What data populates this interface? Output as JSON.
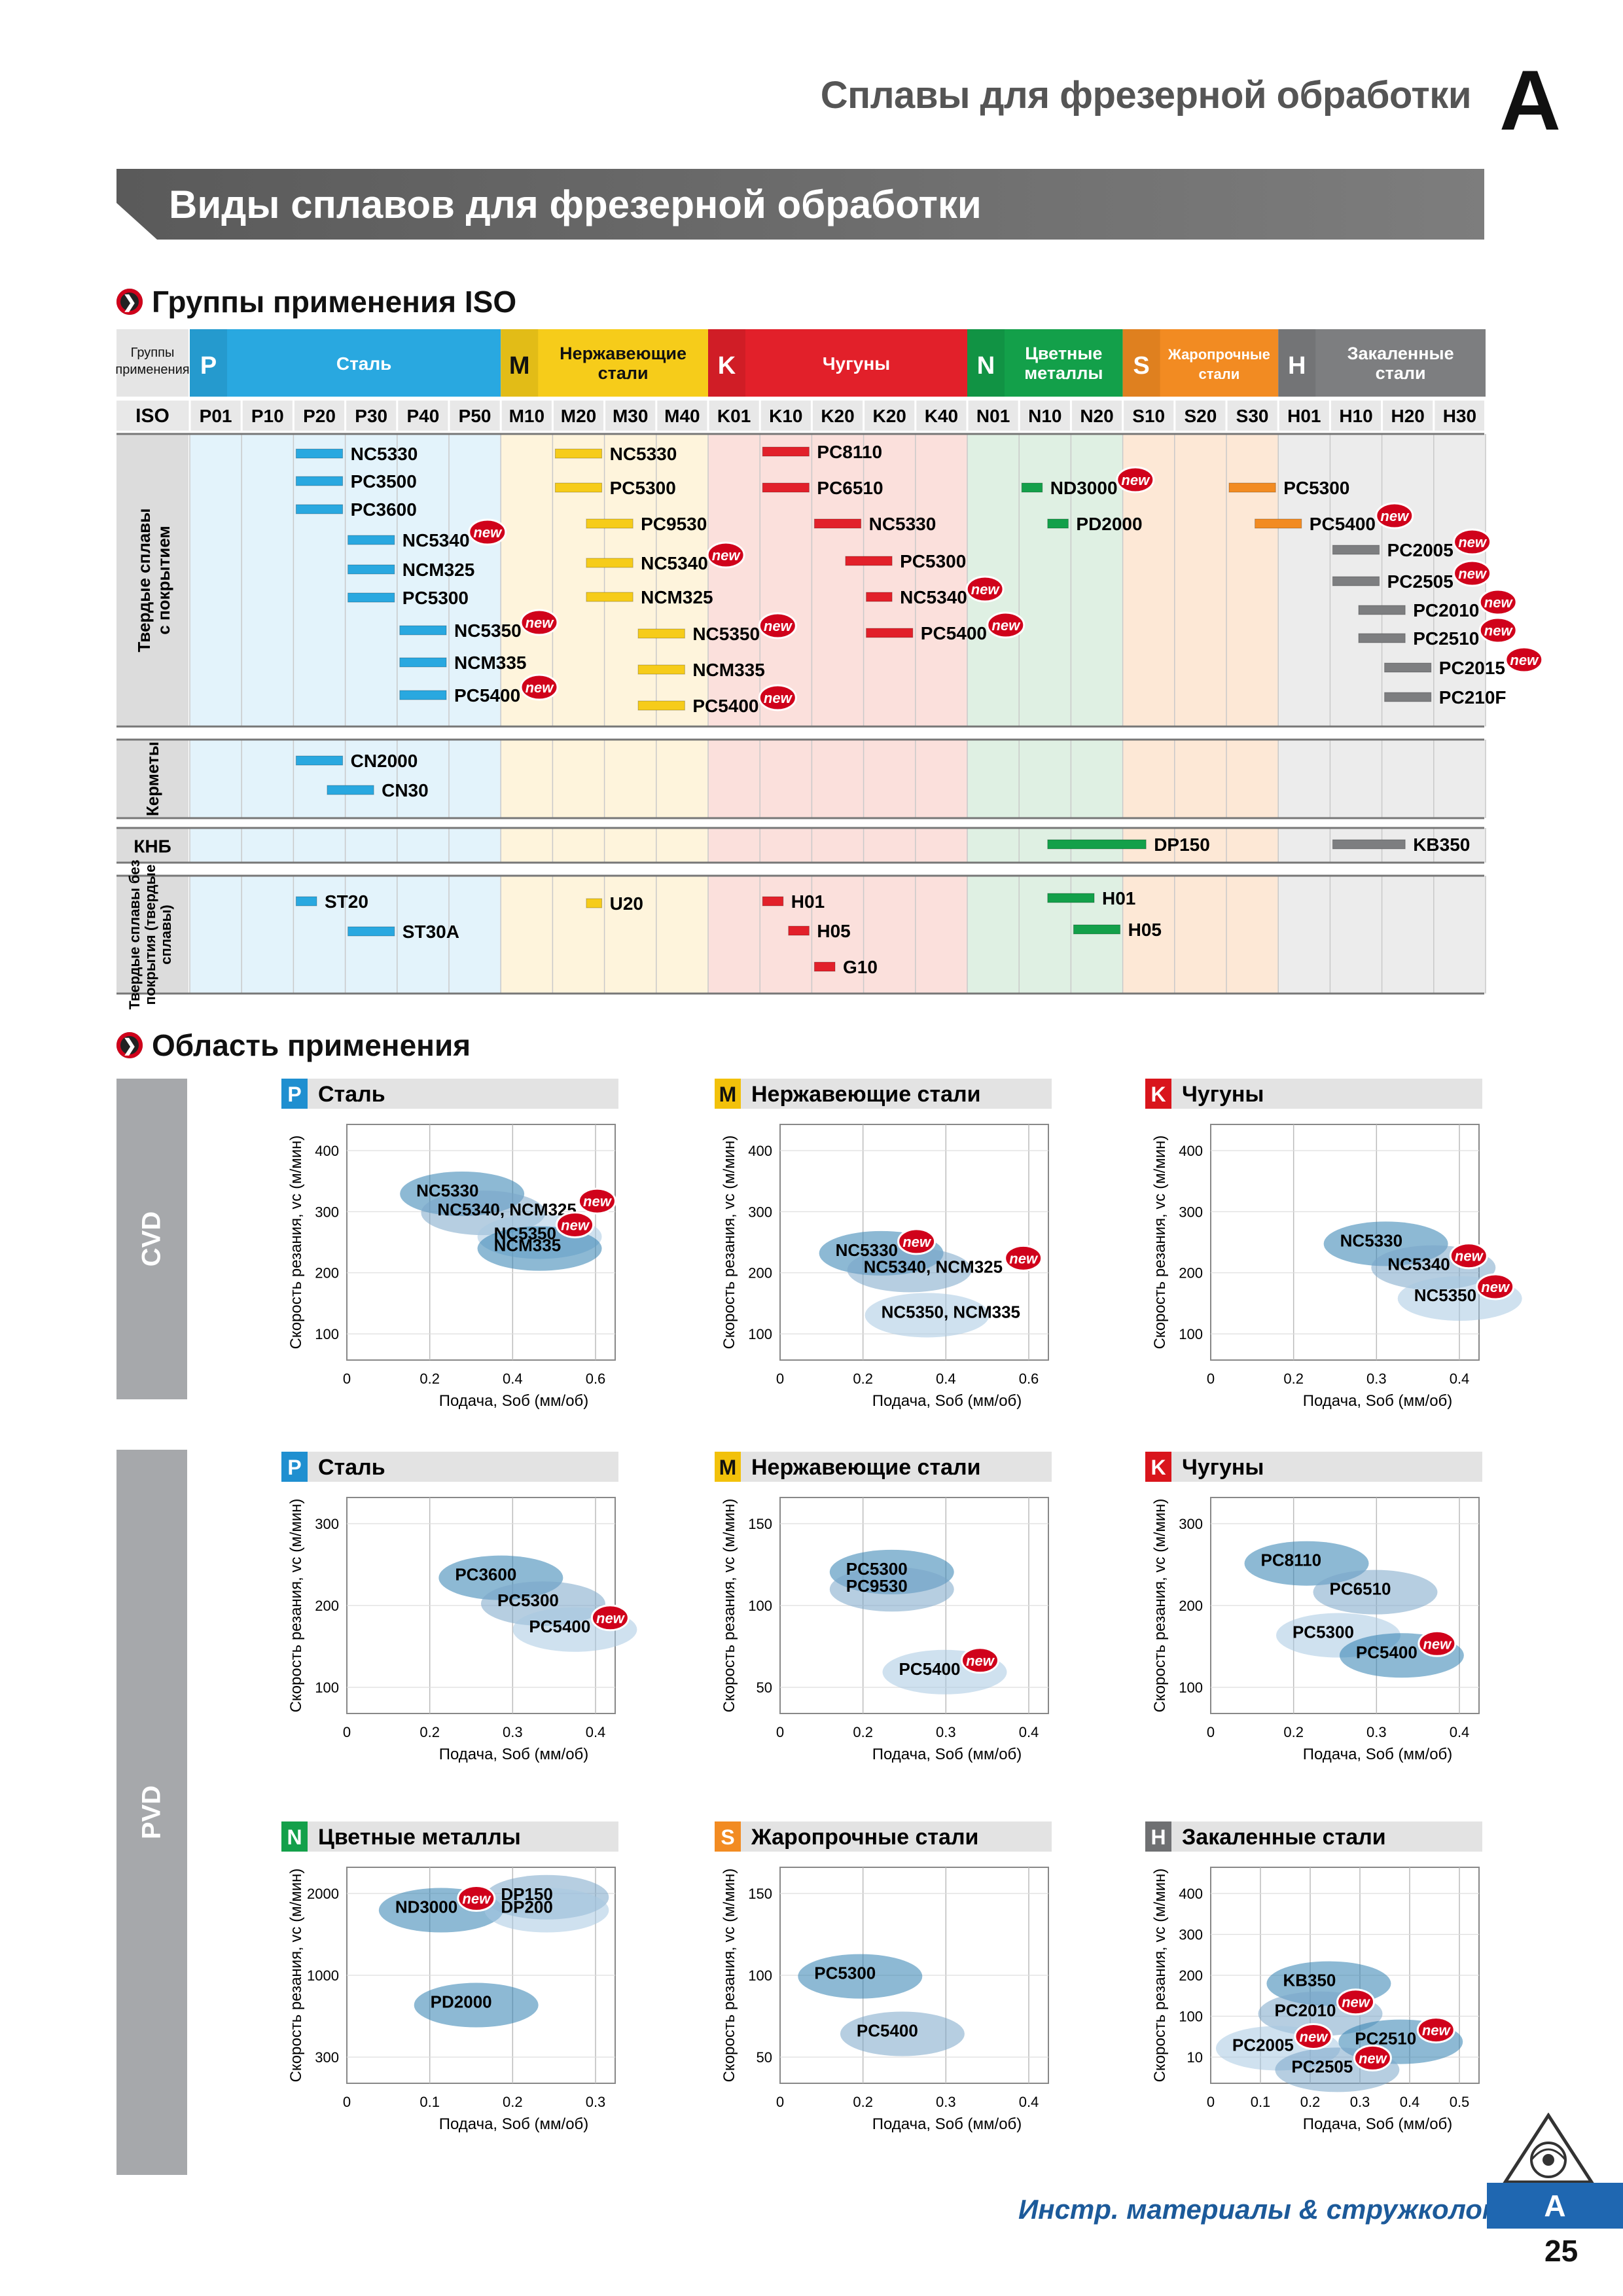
{
  "header": {
    "title": "Сплавы для фрезерной обработки",
    "letter": "A"
  },
  "banner": {
    "title": "Виды сплавов для фрезерной обработки"
  },
  "iso_section": {
    "title": "Группы применения ISO",
    "group_row_label": "Группы применения",
    "iso_row_label": "ISO",
    "groups": [
      {
        "letter": "P",
        "name": "Сталь",
        "color": "#29a8e0"
      },
      {
        "letter": "M",
        "name": "Нержавеющие стали",
        "color": "#f6cc1a"
      },
      {
        "letter": "K",
        "name": "Чугуны",
        "color": "#e2202a"
      },
      {
        "letter": "N",
        "name": "Цветные металлы",
        "color": "#13a04a"
      },
      {
        "letter": "S",
        "name": "Жаропрочные стали",
        "color": "#f28b22"
      },
      {
        "letter": "H",
        "name": "Закаленные стали",
        "color": "#7d7e80"
      }
    ],
    "iso_codes": [
      "P01",
      "P10",
      "P20",
      "P30",
      "P40",
      "P50",
      "M10",
      "M20",
      "M30",
      "M40",
      "K01",
      "K10",
      "K20",
      "K20",
      "K40",
      "N01",
      "N10",
      "N20",
      "S10",
      "S20",
      "S30",
      "H01",
      "H10",
      "H20",
      "H30"
    ],
    "row_labels": [
      "Твердые сплавы с покрытием",
      "Керметы",
      "КНБ",
      "Твердые сплавы без покрытия (твердые сплавы)"
    ],
    "new_badge": "new",
    "bars": [
      {
        "section": 0,
        "label": "NC5330",
        "group": "P"
      },
      {
        "section": 0,
        "label": "PC3500",
        "group": "P"
      },
      {
        "section": 0,
        "label": "PC3600",
        "group": "P"
      },
      {
        "section": 0,
        "label": "NC5340",
        "group": "P",
        "new": true
      },
      {
        "section": 0,
        "label": "NCM325",
        "group": "P"
      },
      {
        "section": 0,
        "label": "PC5300",
        "group": "P"
      },
      {
        "section": 0,
        "label": "NC5350",
        "group": "P",
        "new": true
      },
      {
        "section": 0,
        "label": "NCM335",
        "group": "P"
      },
      {
        "section": 0,
        "label": "PC5400",
        "group": "P",
        "new": true
      },
      {
        "section": 0,
        "label": "NC5330",
        "group": "M"
      },
      {
        "section": 0,
        "label": "PC5300",
        "group": "M"
      },
      {
        "section": 0,
        "label": "PC9530",
        "group": "M"
      },
      {
        "section": 0,
        "label": "NC5340",
        "group": "M",
        "new": true
      },
      {
        "section": 0,
        "label": "NCM325",
        "group": "M"
      },
      {
        "section": 0,
        "label": "NC5350",
        "group": "M",
        "new": true
      },
      {
        "section": 0,
        "label": "NCM335",
        "group": "M"
      },
      {
        "section": 0,
        "label": "PC5400",
        "group": "M",
        "new": true
      },
      {
        "section": 0,
        "label": "PC8110",
        "group": "K"
      },
      {
        "section": 0,
        "label": "PC6510",
        "group": "K"
      },
      {
        "section": 0,
        "label": "NC5330",
        "group": "K"
      },
      {
        "section": 0,
        "label": "PC5300",
        "group": "K"
      },
      {
        "section": 0,
        "label": "NC5340",
        "group": "K",
        "new": true
      },
      {
        "section": 0,
        "label": "PC5400",
        "group": "K",
        "new": true
      },
      {
        "section": 0,
        "label": "ND3000",
        "group": "N",
        "new": true
      },
      {
        "section": 0,
        "label": "PD2000",
        "group": "N"
      },
      {
        "section": 0,
        "label": "PC5300",
        "group": "S"
      },
      {
        "section": 0,
        "label": "PC5400",
        "group": "S",
        "new": true
      },
      {
        "section": 0,
        "label": "PC2005",
        "group": "H",
        "new": true
      },
      {
        "section": 0,
        "label": "PC2505",
        "group": "H",
        "new": true
      },
      {
        "section": 0,
        "label": "PC2010",
        "group": "H",
        "new": true
      },
      {
        "section": 0,
        "label": "PC2510",
        "group": "H",
        "new": true
      },
      {
        "section": 0,
        "label": "PC2015",
        "group": "H",
        "new": true
      },
      {
        "section": 0,
        "label": "PC210F",
        "group": "H"
      },
      {
        "section": 1,
        "label": "CN2000",
        "group": "P"
      },
      {
        "section": 1,
        "label": "CN30",
        "group": "P"
      },
      {
        "section": 2,
        "label": "DP150",
        "group": "N"
      },
      {
        "section": 2,
        "label": "KB350",
        "group": "H"
      },
      {
        "section": 3,
        "label": "ST20",
        "group": "P"
      },
      {
        "section": 3,
        "label": "ST30A",
        "group": "P"
      },
      {
        "section": 3,
        "label": "U20",
        "group": "M"
      },
      {
        "section": 3,
        "label": "H01",
        "group": "K"
      },
      {
        "section": 3,
        "label": "H05",
        "group": "K"
      },
      {
        "section": 3,
        "label": "G10",
        "group": "K"
      },
      {
        "section": 3,
        "label": "H01",
        "group": "N"
      },
      {
        "section": 3,
        "label": "H05",
        "group": "N"
      }
    ]
  },
  "app_section": {
    "title": "Область применения",
    "side_labels": [
      "CVD",
      "PVD"
    ],
    "new_badge": "new"
  },
  "chart_data": [
    {
      "type": "scatter",
      "title": "Сталь",
      "letter": "P",
      "method": "CVD",
      "xlabel": "Подача, Sоб (мм/об)",
      "ylabel": "Скорость резания, vc (м/мин)",
      "xticks": [
        "0",
        "0.2",
        "0.4",
        "0.6"
      ],
      "yticks": [
        "100",
        "200",
        "300",
        "400"
      ],
      "regions": [
        {
          "name": "NC5330",
          "x": 0.16,
          "y": 330
        },
        {
          "name": "NC5340, NCM325",
          "x": 0.22,
          "y": 290,
          "new": true
        },
        {
          "name": "NC5350",
          "x": 0.38,
          "y": 240,
          "new": true
        },
        {
          "name": "NCM335",
          "x": 0.38,
          "y": 215
        }
      ]
    },
    {
      "type": "scatter",
      "title": "Нержавеющие стали",
      "letter": "M",
      "method": "CVD",
      "xlabel": "Подача, Sоб (мм/об)",
      "ylabel": "Скорость резания, vc (м/мин)",
      "xticks": [
        "0",
        "0.2",
        "0.4",
        "0.6"
      ],
      "yticks": [
        "100",
        "200",
        "300",
        "400"
      ],
      "regions": [
        {
          "name": "NC5330",
          "x": 0.12,
          "y": 205,
          "new": true
        },
        {
          "name": "NC5340, NCM325",
          "x": 0.2,
          "y": 170,
          "new": true
        },
        {
          "name": "NC5350, NCM335",
          "x": 0.25,
          "y": 75
        }
      ]
    },
    {
      "type": "scatter",
      "title": "Чугуны",
      "letter": "K",
      "method": "CVD",
      "xlabel": "Подача, Sоб (мм/об)",
      "ylabel": "Скорость резания, vc (м/мин)",
      "xticks": [
        "0",
        "0.2",
        "0.3",
        "0.4"
      ],
      "yticks": [
        "100",
        "200",
        "300",
        "400"
      ],
      "regions": [
        {
          "name": "NC5330",
          "x": 0.22,
          "y": 225
        },
        {
          "name": "NC5340",
          "x": 0.31,
          "y": 175,
          "new": true
        },
        {
          "name": "NC5350",
          "x": 0.36,
          "y": 110,
          "new": true
        }
      ]
    },
    {
      "type": "scatter",
      "title": "Сталь",
      "letter": "P",
      "method": "PVD",
      "xlabel": "Подача, Sоб (мм/об)",
      "ylabel": "Скорость резания, vc (м/мин)",
      "xticks": [
        "0",
        "0.2",
        "0.3",
        "0.4"
      ],
      "yticks": [
        "100",
        "200",
        "300"
      ],
      "regions": [
        {
          "name": "PC3600",
          "x": 0.18,
          "y": 220
        },
        {
          "name": "PC5300",
          "x": 0.26,
          "y": 175
        },
        {
          "name": "PC5400",
          "x": 0.32,
          "y": 130,
          "new": true
        }
      ]
    },
    {
      "type": "scatter",
      "title": "Нержавеющие стали",
      "letter": "M",
      "method": "PVD",
      "xlabel": "Подача, Sоб (мм/об)",
      "ylabel": "Скорость резания, vc (м/мин)",
      "xticks": [
        "0",
        "0.2",
        "0.3",
        "0.4"
      ],
      "yticks": [
        "50",
        "100",
        "150"
      ],
      "regions": [
        {
          "name": "PC5300",
          "x": 0.1,
          "y": 115
        },
        {
          "name": "PC9530",
          "x": 0.1,
          "y": 100
        },
        {
          "name": "PC5400",
          "x": 0.2,
          "y": 28,
          "new": true
        }
      ]
    },
    {
      "type": "scatter",
      "title": "Чугуны",
      "letter": "K",
      "method": "PVD",
      "xlabel": "Подача, Sоб (мм/об)",
      "ylabel": "Скорость резания, vc (м/мин)",
      "xticks": [
        "0",
        "0.2",
        "0.3",
        "0.4"
      ],
      "yticks": [
        "100",
        "200",
        "300"
      ],
      "regions": [
        {
          "name": "PC8110",
          "x": 0.07,
          "y": 245
        },
        {
          "name": "PC6510",
          "x": 0.2,
          "y": 195
        },
        {
          "name": "PC5300",
          "x": 0.13,
          "y": 120
        },
        {
          "name": "PC5400",
          "x": 0.25,
          "y": 85,
          "new": true
        }
      ]
    },
    {
      "type": "scatter",
      "title": "Цветные металлы",
      "letter": "N",
      "method": "PVD",
      "xlabel": "Подача, Sоб (мм/об)",
      "ylabel": "Скорость резания, vc (м/мин)",
      "xticks": [
        "0",
        "0.1",
        "0.2",
        "0.3"
      ],
      "yticks": [
        "300",
        "1000",
        "2000"
      ],
      "regions": [
        {
          "name": "ND3000",
          "x": 0.05,
          "y": 1900,
          "new": true
        },
        {
          "name": "DP150",
          "x": 0.2,
          "y": 2050
        },
        {
          "name": "DP200",
          "x": 0.2,
          "y": 1900
        },
        {
          "name": "PD2000",
          "x": 0.1,
          "y": 800
        }
      ]
    },
    {
      "type": "scatter",
      "title": "Жаропрочные стали",
      "letter": "S",
      "method": "PVD",
      "xlabel": "Подача, Sоб (мм/об)",
      "ylabel": "Скорость резания, vc (м/мин)",
      "xticks": [
        "0",
        "0.2",
        "0.3",
        "0.4"
      ],
      "yticks": [
        "50",
        "100",
        "150"
      ],
      "regions": [
        {
          "name": "PC5300",
          "x": 0.04,
          "y": 85
        },
        {
          "name": "PC5400",
          "x": 0.12,
          "y": 35
        }
      ]
    },
    {
      "type": "scatter",
      "title": "Закаленные стали",
      "letter": "H",
      "method": "PVD",
      "xlabel": "Подача, Sоб (мм/об)",
      "ylabel": "Скорость резания, vc (м/мин)",
      "xticks": [
        "0",
        "0.1",
        "0.2",
        "0.3",
        "0.4",
        "0.5"
      ],
      "yticks": [
        "10",
        "100",
        "200",
        "300",
        "400"
      ],
      "regions": [
        {
          "name": "KB350",
          "x": 0.14,
          "y": 210
        },
        {
          "name": "PC2010",
          "x": 0.12,
          "y": 140,
          "new": true
        },
        {
          "name": "PC2005",
          "x": 0.02,
          "y": 60,
          "new": true
        },
        {
          "name": "PC2510",
          "x": 0.31,
          "y": 75,
          "new": true
        },
        {
          "name": "PC2505",
          "x": 0.16,
          "y": 10,
          "new": true
        }
      ]
    }
  ],
  "footer": {
    "text": "Инстр. материалы & стружколомы",
    "letter": "A",
    "page": "25"
  }
}
